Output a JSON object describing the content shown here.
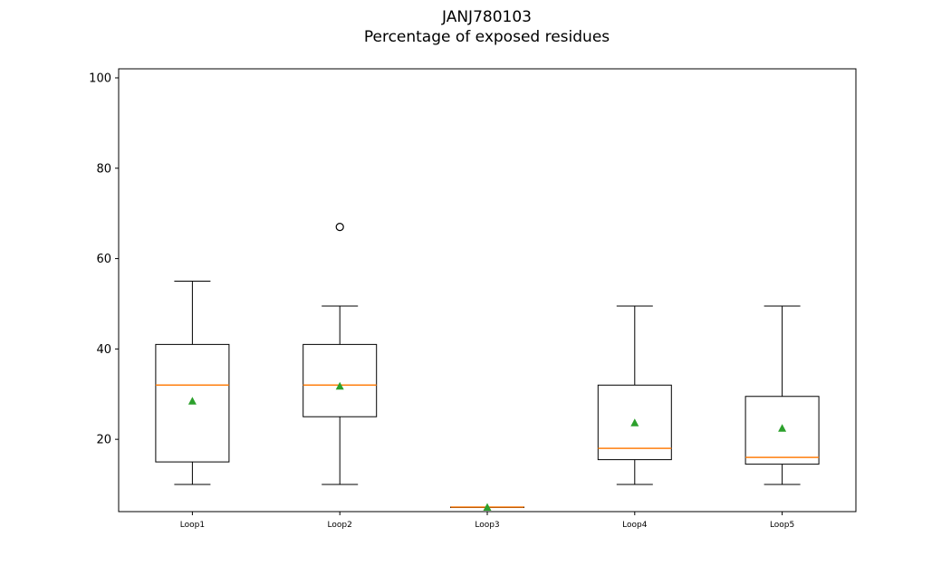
{
  "chart_data": {
    "type": "box",
    "title": "JANJ780103",
    "subtitle": "Percentage of exposed residues",
    "xlabel": "",
    "ylabel": "",
    "ylim": [
      4,
      102
    ],
    "yticks": [
      20,
      40,
      60,
      80,
      100
    ],
    "grid": false,
    "categories": [
      "Loop1",
      "Loop2",
      "Loop3",
      "Loop4",
      "Loop5"
    ],
    "boxes": [
      {
        "category": "Loop1",
        "whisker_low": 10,
        "q1": 15,
        "median": 32,
        "q3": 41,
        "whisker_high": 55,
        "mean": 28.5,
        "outliers": []
      },
      {
        "category": "Loop2",
        "whisker_low": 10,
        "q1": 25,
        "median": 32,
        "q3": 41,
        "whisker_high": 49.5,
        "mean": 31.8,
        "outliers": [
          67
        ]
      },
      {
        "category": "Loop3",
        "whisker_low": 5,
        "q1": 5,
        "median": 5,
        "q3": 5,
        "whisker_high": 5,
        "mean": 5,
        "outliers": []
      },
      {
        "category": "Loop4",
        "whisker_low": 10,
        "q1": 15.5,
        "median": 18,
        "q3": 32,
        "whisker_high": 49.5,
        "mean": 23.7,
        "outliers": []
      },
      {
        "category": "Loop5",
        "whisker_low": 10,
        "q1": 14.5,
        "median": 16,
        "q3": 29.5,
        "whisker_high": 49.5,
        "mean": 22.5,
        "outliers": []
      }
    ],
    "colors": {
      "box": "#000000",
      "median": "#ff7f0e",
      "mean": "#2ca02c"
    }
  }
}
